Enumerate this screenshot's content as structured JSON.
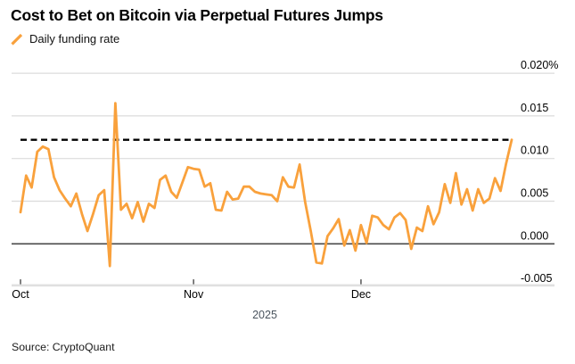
{
  "header": {
    "title": "Cost to Bet on Bitcoin via Perpetual Futures Jumps",
    "legend_label": "Daily funding rate"
  },
  "footer": {
    "source": "Source: CryptoQuant",
    "year": "2025"
  },
  "colors": {
    "line": "#F9A13C",
    "grid": "#DCDCDC",
    "zero_line": "#4A4A4A",
    "reference_dashed": "#000000",
    "axis_band": "#E0E0E0",
    "tick": "#2B2B2B",
    "axis_text": "#000000",
    "year_text": "#4A545E"
  },
  "chart_data": {
    "type": "line",
    "title": "Cost to Bet on Bitcoin via Perpetual Futures Jumps",
    "series": [
      {
        "name": "Daily funding rate",
        "values": [
          0.0037,
          0.008,
          0.0066,
          0.0108,
          0.0114,
          0.0111,
          0.0078,
          0.0063,
          0.0053,
          0.0044,
          0.0059,
          0.0035,
          0.0015,
          0.0035,
          0.0057,
          0.0063,
          -0.0026,
          0.0165,
          0.004,
          0.0047,
          0.003,
          0.0049,
          0.0026,
          0.0047,
          0.0042,
          0.0075,
          0.008,
          0.0061,
          0.0054,
          0.0072,
          0.009,
          0.0088,
          0.0087,
          0.0067,
          0.0071,
          0.004,
          0.0039,
          0.0061,
          0.0052,
          0.0053,
          0.0067,
          0.0067,
          0.0061,
          0.0059,
          0.0058,
          0.0057,
          0.005,
          0.0078,
          0.0067,
          0.0066,
          0.0093,
          0.0049,
          0.0015,
          -0.0022,
          -0.0023,
          0.0009,
          0.0018,
          0.0029,
          -0.0002,
          0.0016,
          -0.0008,
          0.0022,
          0.0001,
          0.0033,
          0.0031,
          0.0022,
          0.0017,
          0.0031,
          0.0036,
          0.0028,
          -0.0006,
          0.0019,
          0.0015,
          0.0044,
          0.0023,
          0.0037,
          0.007,
          0.0048,
          0.0083,
          0.0046,
          0.0064,
          0.0039,
          0.0064,
          0.0048,
          0.0053,
          0.0077,
          0.0062,
          0.0094,
          0.0122
        ]
      }
    ],
    "x_tick_labels": [
      "Oct",
      "Nov",
      "Dec"
    ],
    "x_tick_indices": [
      0,
      31,
      61
    ],
    "x_axis_year": "2025",
    "y_tick_labels": [
      "0.020%",
      "0.015",
      "0.010",
      "0.005",
      "0.000",
      "-0.005"
    ],
    "y_tick_values": [
      0.02,
      0.015,
      0.01,
      0.005,
      0.0,
      -0.005
    ],
    "ylim": [
      -0.006,
      0.0215
    ],
    "unit": "%",
    "reference_line": {
      "value": 0.0122,
      "style": "dashed"
    },
    "grid": true,
    "legend_position": "top-left"
  }
}
